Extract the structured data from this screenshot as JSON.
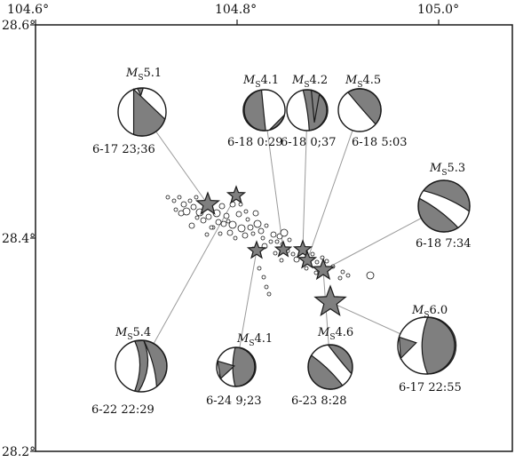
{
  "axes": {
    "top_ticks": [
      "104.6°",
      "104.8°",
      "105.0°"
    ],
    "left_ticks": [
      "28.6°",
      "28.4°",
      "28.2°"
    ]
  },
  "colors": {
    "fill": "#7f7f7f",
    "ink": "#1a1a1a",
    "line": "#9a9a9a"
  },
  "events": [
    {
      "id": "e1",
      "mag_prefix": "M",
      "mag_sub": "S",
      "mag": "5.1",
      "date": "6-17 23;36"
    },
    {
      "id": "e2",
      "mag_prefix": "M",
      "mag_sub": "S",
      "mag": "4.1",
      "date": "6-18 0:29"
    },
    {
      "id": "e3",
      "mag_prefix": "M",
      "mag_sub": "S",
      "mag": "4.2",
      "date": "6-18 0;37"
    },
    {
      "id": "e4",
      "mag_prefix": "M",
      "mag_sub": "S",
      "mag": "4.5",
      "date": "6-18 5:03"
    },
    {
      "id": "e5",
      "mag_prefix": "M",
      "mag_sub": "S",
      "mag": "5.3",
      "date": "6-18 7:34"
    },
    {
      "id": "e6",
      "mag_prefix": "M",
      "mag_sub": "S",
      "mag": "5.4",
      "date": "6-22 22:29"
    },
    {
      "id": "e7",
      "mag_prefix": "M",
      "mag_sub": "S",
      "mag": "4.1",
      "date": "6-24 9;23"
    },
    {
      "id": "e8",
      "mag_prefix": "M",
      "mag_sub": "S",
      "mag": "4.6",
      "date": "6-23 8:28"
    },
    {
      "id": "e9",
      "mag_prefix": "M",
      "mag_sub": "S",
      "mag": "6.0",
      "date": "6-17 22:55"
    }
  ]
}
